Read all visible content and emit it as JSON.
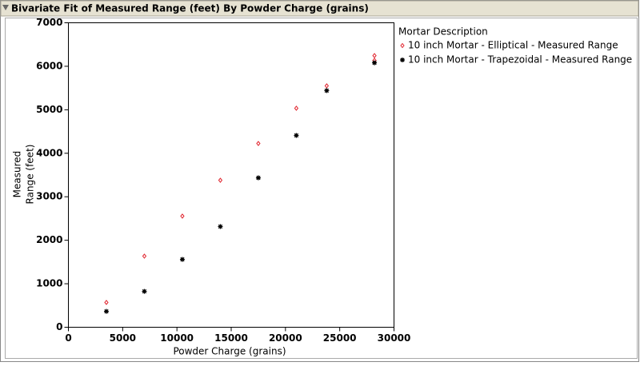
{
  "window_title": "Bivariate Fit of Measured Range (feet) By Powder Charge (grains)",
  "chart_data": {
    "type": "scatter",
    "x_label": "Powder Charge (grains)",
    "y_label_lines": [
      "Measured",
      "Range (feet)"
    ],
    "legend_title": "Mortar Description",
    "xlim": [
      0,
      30000
    ],
    "xticks": [
      0,
      5000,
      10000,
      15000,
      20000,
      25000,
      30000
    ],
    "ylim": [
      0,
      7000
    ],
    "yticks": [
      0,
      1000,
      2000,
      3000,
      4000,
      5000,
      6000,
      7000
    ],
    "series": [
      {
        "name": "10 inch Mortar - Elliptical - Measured Range",
        "color": "#e0202a",
        "marker": "diamond",
        "x": [
          3500,
          7000,
          10500,
          14000,
          17500,
          21000,
          23800,
          28200,
          28200
        ],
        "values": [
          570,
          1635,
          2555,
          3380,
          4225,
          5035,
          5550,
          6245,
          6135
        ]
      },
      {
        "name": "10 inch Mortar - Trapezoidal - Measured Range",
        "color": "#000000",
        "marker": "star",
        "x": [
          3500,
          7000,
          10500,
          14000,
          17500,
          21000,
          23800,
          28200
        ],
        "values": [
          365,
          825,
          1560,
          2315,
          3435,
          4410,
          5440,
          6080
        ]
      }
    ]
  }
}
